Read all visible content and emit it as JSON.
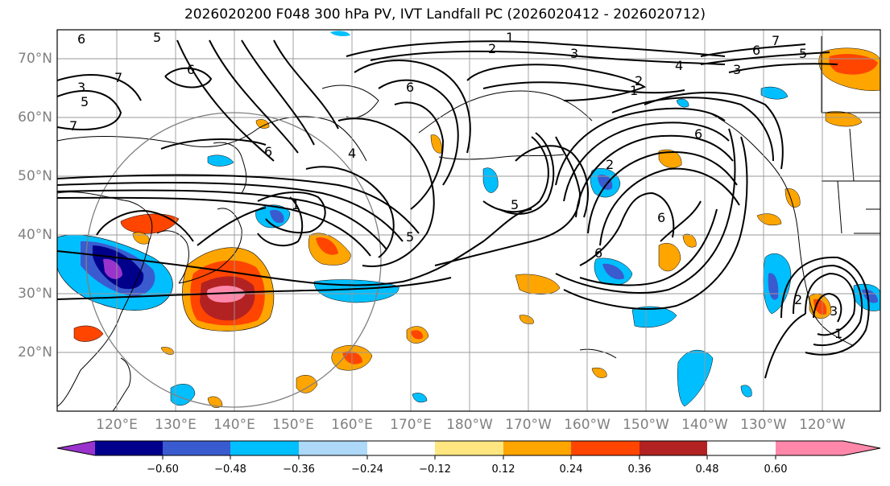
{
  "title": "2026020200 F048 300 hPa PV, IVT Landfall PC (2026020412 - 2026020712)",
  "lat_labels": [
    "70°N",
    "60°N",
    "50°N",
    "40°N",
    "30°N",
    "20°N"
  ],
  "lon_labels": [
    "120°E",
    "130°E",
    "140°E",
    "150°E",
    "160°E",
    "170°E",
    "180°W",
    "170°W",
    "160°W",
    "150°W",
    "140°W",
    "130°W",
    "120°W"
  ],
  "colorbar": {
    "ticks": [
      "−0.60",
      "−0.48",
      "−0.36",
      "−0.24",
      "−0.12",
      "0.12",
      "0.24",
      "0.36",
      "0.48",
      "0.60"
    ],
    "colors": [
      "#9933cc",
      "#00008b",
      "#3a5bd0",
      "#00bfff",
      "#add8f7",
      "#ffffff",
      "#ffe680",
      "#ffa500",
      "#ff4500",
      "#b22222",
      "#ff88aa"
    ]
  },
  "contour_labels": [
    {
      "text": "1"
    },
    {
      "text": "2"
    },
    {
      "text": "3"
    },
    {
      "text": "4"
    },
    {
      "text": "5"
    },
    {
      "text": "6"
    },
    {
      "text": "7"
    },
    {
      "text": "6"
    },
    {
      "text": "5"
    },
    {
      "text": "3"
    },
    {
      "text": "1"
    },
    {
      "text": "2"
    },
    {
      "text": "6"
    },
    {
      "text": "6"
    },
    {
      "text": "5"
    },
    {
      "text": "1"
    },
    {
      "text": "6"
    },
    {
      "text": "5"
    },
    {
      "text": "2"
    },
    {
      "text": "6"
    },
    {
      "text": "7"
    },
    {
      "text": "6"
    },
    {
      "text": "5"
    },
    {
      "text": "3"
    },
    {
      "text": "7"
    },
    {
      "text": "1"
    },
    {
      "text": "2"
    },
    {
      "text": "3"
    },
    {
      "text": "4"
    },
    {
      "text": "6"
    }
  ]
}
